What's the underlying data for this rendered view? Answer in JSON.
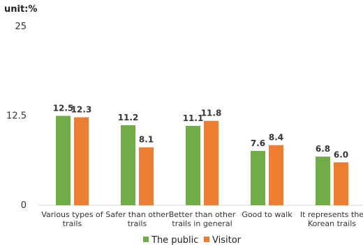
{
  "chart_data": {
    "type": "bar",
    "unit_label": "unit:%",
    "categories": [
      [
        "Various types of",
        "trails"
      ],
      [
        "Safer than other",
        "trails"
      ],
      [
        "Better than other",
        "trails in general"
      ],
      [
        "Good to walk"
      ],
      [
        "It represents the",
        "Korean trails"
      ]
    ],
    "series": [
      {
        "name": "The public",
        "color": "#70ad47",
        "values": [
          12.5,
          11.2,
          11.1,
          7.6,
          6.8
        ],
        "labels": [
          "12.5",
          "11.2",
          "11.1",
          "7.6",
          "6.8"
        ]
      },
      {
        "name": "Visitor",
        "color": "#ed7d31",
        "values": [
          12.3,
          8.1,
          11.8,
          8.4,
          6.0
        ],
        "labels": [
          "12.3",
          "8.1",
          "11.8",
          "8.4",
          "6.0"
        ]
      }
    ],
    "ylim": [
      0,
      25
    ],
    "yticks": [
      "0",
      "12.5",
      "25"
    ],
    "grid": false,
    "legend": "bottom"
  }
}
